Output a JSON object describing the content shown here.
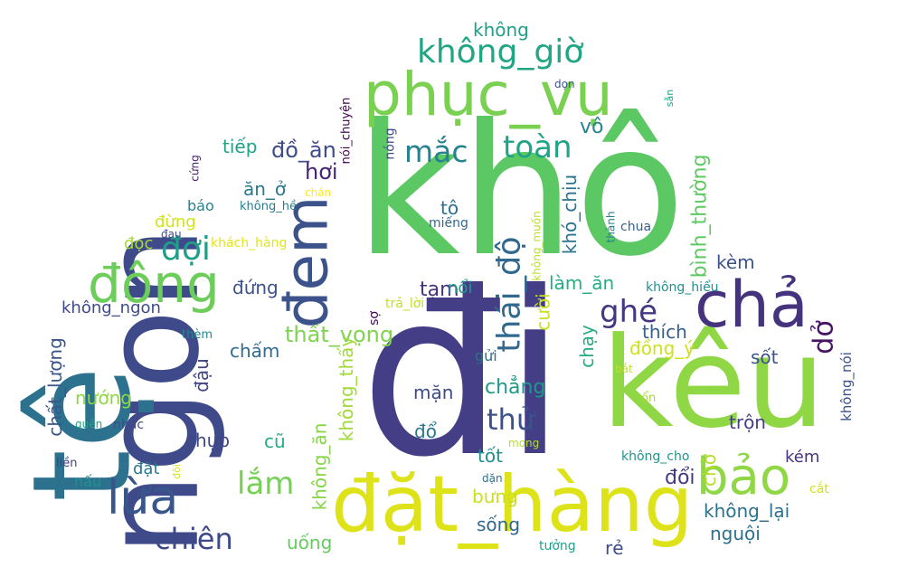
{
  "words": [
    {
      "text": "khô",
      "color": "#5cc863"
    },
    {
      "text": "đi",
      "color": "#433e85"
    },
    {
      "text": "ngon",
      "color": "#3e4a89"
    },
    {
      "text": "tệ",
      "color": "#2c728e"
    },
    {
      "text": "kêu",
      "color": "#8fd744"
    },
    {
      "text": "đặt_hàng",
      "color": "#dde318"
    },
    {
      "text": "phục_vụ",
      "color": "#7ad151"
    },
    {
      "text": "chả",
      "color": "#46337e"
    },
    {
      "text": "bảo",
      "color": "#8fd744"
    },
    {
      "text": "đông",
      "color": "#6ccd5a"
    },
    {
      "text": "đem",
      "color": "#3b528b"
    },
    {
      "text": "lừa",
      "color": "#39568c"
    },
    {
      "text": "không_giờ",
      "color": "#21a685"
    },
    {
      "text": "thái_độ",
      "color": "#31688e"
    },
    {
      "text": "toàn",
      "color": "#20a386"
    },
    {
      "text": "mắc",
      "color": "#26828e"
    },
    {
      "text": "đợi",
      "color": "#1f9e89"
    },
    {
      "text": "thử",
      "color": "#3b528b"
    },
    {
      "text": "chiên",
      "color": "#3e4989"
    },
    {
      "text": "lắm",
      "color": "#75d054"
    },
    {
      "text": "ghé",
      "color": "#453781"
    },
    {
      "text": "dở",
      "color": "#471365"
    },
    {
      "text": "không_lại",
      "color": "#2c728e"
    },
    {
      "text": "thất_vọng",
      "color": "#7fd34e"
    },
    {
      "text": "chẳng",
      "color": "#1f988b"
    },
    {
      "text": "đổi",
      "color": "#443a83"
    },
    {
      "text": "không",
      "color": "#1f9f88"
    },
    {
      "text": "vô",
      "color": "#25858e"
    },
    {
      "text": "đồ_ăn",
      "color": "#3e4c8a"
    },
    {
      "text": "hơi",
      "color": "#482475"
    },
    {
      "text": "tiếp",
      "color": "#1fa287"
    },
    {
      "text": "ăn_ở",
      "color": "#2a788e"
    },
    {
      "text": "báo",
      "color": "#26828e"
    },
    {
      "text": "đừng",
      "color": "#d2e21b"
    },
    {
      "text": "đọc",
      "color": "#a5db36"
    },
    {
      "text": "tô",
      "color": "#2e6e8e"
    },
    {
      "text": "miếng",
      "color": "#31688e"
    },
    {
      "text": "khó_chịu",
      "color": "#2c738e"
    },
    {
      "text": "bình_thường",
      "color": "#5ec962"
    },
    {
      "text": "kèm",
      "color": "#3b528b"
    },
    {
      "text": "làm_ăn",
      "color": "#25ac82"
    },
    {
      "text": "tạm",
      "color": "#46327e"
    },
    {
      "text": "nổi",
      "color": "#1e9c89"
    },
    {
      "text": "cười",
      "color": "#c8e020"
    },
    {
      "text": "chạy",
      "color": "#25ac82"
    },
    {
      "text": "thích",
      "color": "#355f8d"
    },
    {
      "text": "đồng_ý",
      "color": "#cde11d"
    },
    {
      "text": "sốt",
      "color": "#3b528b"
    },
    {
      "text": "không_ngon",
      "color": "#3e4a89"
    },
    {
      "text": "chấm",
      "color": "#2f6c8e"
    },
    {
      "text": "đậu",
      "color": "#414487"
    },
    {
      "text": "không_thấy",
      "color": "#a0da39"
    },
    {
      "text": "chất_lượng",
      "color": "#39568c"
    },
    {
      "text": "nướng",
      "color": "#8fd744"
    },
    {
      "text": "chụp",
      "color": "#3f4788"
    },
    {
      "text": "cũ",
      "color": "#25ab82"
    },
    {
      "text": "không_ăn",
      "color": "#86d549"
    },
    {
      "text": "mặn",
      "color": "#3e4a89"
    },
    {
      "text": "đổ",
      "color": "#2b758e"
    },
    {
      "text": "gửi",
      "color": "#2c728e"
    },
    {
      "text": "tốt",
      "color": "#21908d"
    },
    {
      "text": "trộn",
      "color": "#433e85"
    },
    {
      "text": "bưng",
      "color": "#c8e020"
    },
    {
      "text": "sống",
      "color": "#31688e"
    },
    {
      "text": "uống",
      "color": "#63cb5f"
    },
    {
      "text": "rẻ",
      "color": "#3e4c8a"
    },
    {
      "text": "nguội",
      "color": "#2d708e"
    },
    {
      "text": "chờ",
      "color": "#b5de2b"
    },
    {
      "text": "kém",
      "color": "#46337e"
    },
    {
      "text": "đặt",
      "color": "#2a788e"
    },
    {
      "text": "nấu",
      "color": "#21918c"
    },
    {
      "text": "liền",
      "color": "#433e85"
    },
    {
      "text": "quên",
      "color": "#1fa287"
    },
    {
      "text": "nhắc",
      "color": "#3e4a89"
    },
    {
      "text": "đôi",
      "color": "#d8e219"
    },
    {
      "text": "thèm",
      "color": "#23888e"
    },
    {
      "text": "sợ",
      "color": "#440154"
    },
    {
      "text": "trả_lời",
      "color": "#c2df23"
    },
    {
      "text": "mong",
      "color": "#b5de2b"
    },
    {
      "text": "dặn",
      "color": "#2c728e"
    },
    {
      "text": "tưởng",
      "color": "#1fa088"
    },
    {
      "text": "cắt",
      "color": "#d2e21b"
    },
    {
      "text": "không_cho",
      "color": "#1f958b"
    },
    {
      "text": "ổn",
      "color": "#a8db34"
    },
    {
      "text": "bắt",
      "color": "#c0df25"
    },
    {
      "text": "không_nói",
      "color": "#3b528b"
    },
    {
      "text": "không_hiểu",
      "color": "#218f8d"
    },
    {
      "text": "không_muốn",
      "color": "#b8de29"
    },
    {
      "text": "thành",
      "color": "#26828e"
    },
    {
      "text": "chua",
      "color": "#355f8d"
    },
    {
      "text": "khách_hàng",
      "color": "#e5e419"
    },
    {
      "text": "không_hề",
      "color": "#287c8e"
    },
    {
      "text": "đau",
      "color": "#3e4a89"
    },
    {
      "text": "chán",
      "color": "#fde725"
    },
    {
      "text": "cứng",
      "color": "#481c6e"
    },
    {
      "text": "nóng",
      "color": "#3f4788"
    },
    {
      "text": "nói_chuyện",
      "color": "#440154"
    },
    {
      "text": "dọn",
      "color": "#39568c"
    },
    {
      "text": "sẵn",
      "color": "#22a884"
    },
    {
      "text": "đứng",
      "color": "#3b528b"
    }
  ]
}
